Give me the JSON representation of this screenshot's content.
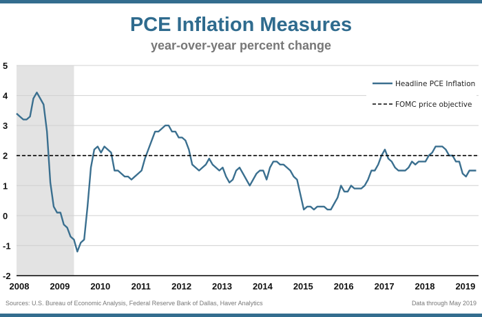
{
  "chart_data": {
    "type": "line",
    "title": "PCE Inflation Measures",
    "subtitle": "year-over-year percent change",
    "x_start": "2008-01",
    "x_frequency": "monthly",
    "x_ticks": [
      "2008",
      "2009",
      "2010",
      "2011",
      "2012",
      "2013",
      "2014",
      "2015",
      "2016",
      "2017",
      "2018",
      "2019"
    ],
    "y_ticks": [
      5,
      4,
      3,
      2,
      1,
      0,
      -1,
      -2
    ],
    "ylim": [
      -2,
      5
    ],
    "grid": true,
    "legend_placement": "top-right",
    "shaded_region": {
      "start": "2008-01",
      "end": "2009-06",
      "color": "#e3e3e3"
    },
    "series": [
      {
        "name": "Headline PCE Inflation",
        "color": "#3a6f8f",
        "style": "solid",
        "values": [
          3.4,
          3.3,
          3.2,
          3.2,
          3.3,
          3.9,
          4.1,
          3.9,
          3.7,
          2.8,
          1.1,
          0.3,
          0.1,
          0.1,
          -0.3,
          -0.4,
          -0.7,
          -0.8,
          -1.2,
          -0.9,
          -0.8,
          0.3,
          1.6,
          2.2,
          2.3,
          2.1,
          2.3,
          2.2,
          2.1,
          1.5,
          1.5,
          1.4,
          1.3,
          1.3,
          1.2,
          1.3,
          1.4,
          1.5,
          1.9,
          2.2,
          2.5,
          2.8,
          2.8,
          2.9,
          3.0,
          3.0,
          2.8,
          2.8,
          2.6,
          2.6,
          2.5,
          2.2,
          1.7,
          1.6,
          1.5,
          1.6,
          1.7,
          1.9,
          1.7,
          1.6,
          1.5,
          1.6,
          1.3,
          1.1,
          1.2,
          1.5,
          1.6,
          1.4,
          1.2,
          1.0,
          1.2,
          1.4,
          1.5,
          1.5,
          1.2,
          1.6,
          1.8,
          1.8,
          1.7,
          1.7,
          1.6,
          1.5,
          1.3,
          1.2,
          0.7,
          0.2,
          0.3,
          0.3,
          0.2,
          0.3,
          0.3,
          0.3,
          0.2,
          0.2,
          0.4,
          0.6,
          1.0,
          0.8,
          0.8,
          1.0,
          0.9,
          0.9,
          0.9,
          1.0,
          1.2,
          1.5,
          1.5,
          1.7,
          2.0,
          2.2,
          1.9,
          1.8,
          1.6,
          1.5,
          1.5,
          1.5,
          1.6,
          1.8,
          1.7,
          1.8,
          1.8,
          1.8,
          2.0,
          2.1,
          2.3,
          2.3,
          2.3,
          2.2,
          2.0,
          2.0,
          1.8,
          1.8,
          1.4,
          1.3,
          1.5,
          1.5,
          1.5
        ]
      },
      {
        "name": "FOMC price objective",
        "color": "#000000",
        "style": "dashed",
        "constant": 2
      }
    ]
  },
  "footer": {
    "sources": "Sources: U.S. Bureau of Economic Analysis, Federal Reserve Bank of Dallas, Haver Analytics",
    "data_through": "Data through May 2019"
  }
}
